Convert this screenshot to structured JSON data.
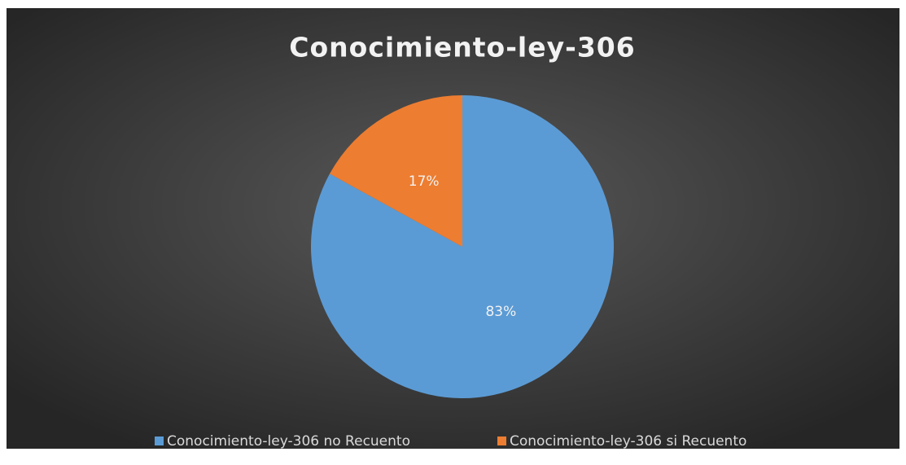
{
  "chart_data": {
    "type": "pie",
    "title": "Conocimiento-ley-306",
    "categories": [
      "Conocimiento-ley-306 no Recuento",
      "Conocimiento-ley-306 si Recuento"
    ],
    "values": [
      83,
      17
    ],
    "value_labels": [
      "83%",
      "17%"
    ],
    "colors": [
      "#5b9bd5",
      "#ed7d31"
    ],
    "legend": "bottom"
  }
}
